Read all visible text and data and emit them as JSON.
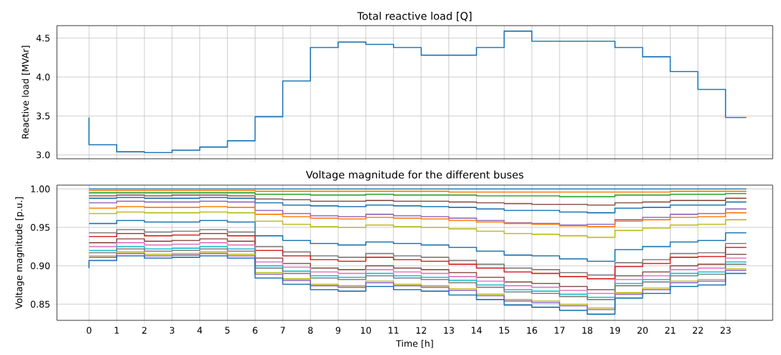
{
  "chart_data": [
    {
      "type": "step",
      "title": "Total reactive load [Q]",
      "ylabel": "Reactive load [MVAr]",
      "x": [
        0,
        1,
        2,
        3,
        4,
        5,
        6,
        7,
        8,
        9,
        10,
        11,
        12,
        13,
        14,
        15,
        16,
        17,
        18,
        19,
        20,
        21,
        22,
        23,
        23.75
      ],
      "values": [
        3.48,
        3.13,
        3.04,
        3.03,
        3.06,
        3.1,
        3.18,
        3.49,
        3.95,
        4.38,
        4.45,
        4.42,
        4.38,
        4.28,
        4.28,
        4.38,
        4.59,
        4.46,
        4.46,
        4.46,
        4.38,
        4.26,
        4.07,
        3.84,
        3.48
      ],
      "color": "#1f77b4",
      "xlim": [
        -1.16,
        24.7
      ],
      "ylim": [
        2.95,
        4.66
      ],
      "xticks": [
        0,
        1,
        2,
        3,
        4,
        5,
        6,
        7,
        8,
        9,
        10,
        11,
        12,
        13,
        14,
        15,
        16,
        17,
        18,
        19,
        20,
        21,
        22,
        23
      ],
      "yticks": [
        {
          "value": 3,
          "label": "3.0"
        },
        3.5,
        {
          "value": 4,
          "label": "4.0"
        },
        4.5
      ],
      "tick_labels": "y",
      "grid": true
    },
    {
      "type": "step",
      "title": "Voltage magnitude for the different buses",
      "xlabel": "Time [h]",
      "ylabel": "Voltage magnitude [p.u.]",
      "x": [
        0,
        1,
        2,
        3,
        4,
        5,
        6,
        7,
        8,
        9,
        10,
        11,
        12,
        13,
        14,
        15,
        16,
        17,
        18,
        19,
        20,
        21,
        22,
        23,
        23.75
      ],
      "series": [
        {
          "color": "#1f77b4",
          "values": [
            1.0,
            1.0,
            1.0,
            1.0,
            1.0,
            1.0,
            1.0,
            1.0,
            1.0,
            1.0,
            1.0,
            1.0,
            1.0,
            1.0,
            1.0,
            1.0,
            1.0,
            1.0,
            1.0,
            1.0,
            1.0,
            1.0,
            1.0,
            1.0,
            1.0
          ]
        },
        {
          "color": "#ff7f0e",
          "values": [
            0.998,
            0.998,
            0.998,
            0.998,
            0.998,
            0.998,
            0.998,
            0.997,
            0.997,
            0.997,
            0.997,
            0.997,
            0.997,
            0.997,
            0.996,
            0.996,
            0.996,
            0.996,
            0.996,
            0.996,
            0.996,
            0.996,
            0.997,
            0.997,
            0.997
          ]
        },
        {
          "color": "#2ca02c",
          "values": [
            0.995,
            0.995,
            0.995,
            0.995,
            0.995,
            0.995,
            0.995,
            0.993,
            0.993,
            0.992,
            0.992,
            0.993,
            0.992,
            0.992,
            0.992,
            0.991,
            0.991,
            0.991,
            0.99,
            0.99,
            0.992,
            0.992,
            0.993,
            0.993,
            0.994
          ]
        },
        {
          "color": "#8c564b",
          "values": [
            0.991,
            0.991,
            0.992,
            0.991,
            0.992,
            0.992,
            0.991,
            0.987,
            0.986,
            0.984,
            0.984,
            0.985,
            0.984,
            0.984,
            0.983,
            0.982,
            0.981,
            0.98,
            0.98,
            0.979,
            0.982,
            0.983,
            0.985,
            0.985,
            0.988
          ]
        },
        {
          "color": "#1f77b4",
          "values": [
            0.988,
            0.988,
            0.989,
            0.988,
            0.988,
            0.989,
            0.988,
            0.982,
            0.979,
            0.978,
            0.977,
            0.979,
            0.978,
            0.977,
            0.976,
            0.974,
            0.972,
            0.972,
            0.97,
            0.969,
            0.975,
            0.976,
            0.979,
            0.979,
            0.983
          ]
        },
        {
          "color": "#9467bd",
          "values": [
            0.982,
            0.982,
            0.984,
            0.983,
            0.983,
            0.984,
            0.983,
            0.972,
            0.968,
            0.965,
            0.964,
            0.967,
            0.965,
            0.964,
            0.962,
            0.959,
            0.956,
            0.955,
            0.953,
            0.954,
            0.96,
            0.963,
            0.967,
            0.968,
            0.974
          ]
        },
        {
          "color": "#ff7f0e",
          "values": [
            0.975,
            0.975,
            0.977,
            0.976,
            0.976,
            0.977,
            0.976,
            0.967,
            0.964,
            0.962,
            0.961,
            0.963,
            0.962,
            0.961,
            0.959,
            0.957,
            0.955,
            0.954,
            0.952,
            0.951,
            0.958,
            0.96,
            0.963,
            0.964,
            0.969
          ]
        },
        {
          "color": "#bcbd22",
          "values": [
            0.968,
            0.968,
            0.97,
            0.969,
            0.969,
            0.97,
            0.969,
            0.958,
            0.954,
            0.951,
            0.95,
            0.953,
            0.951,
            0.95,
            0.948,
            0.945,
            0.942,
            0.941,
            0.939,
            0.937,
            0.946,
            0.949,
            0.953,
            0.954,
            0.96
          ]
        },
        {
          "color": "#1f77b4",
          "values": [
            0.955,
            0.955,
            0.959,
            0.957,
            0.957,
            0.959,
            0.957,
            0.939,
            0.933,
            0.929,
            0.927,
            0.931,
            0.929,
            0.927,
            0.924,
            0.919,
            0.914,
            0.913,
            0.909,
            0.906,
            0.921,
            0.925,
            0.931,
            0.933,
            0.943
          ]
        },
        {
          "color": "#7f7f7f",
          "values": [
            0.943,
            0.943,
            0.947,
            0.944,
            0.945,
            0.947,
            0.944,
            0.925,
            0.918,
            0.913,
            0.911,
            0.916,
            0.913,
            0.911,
            0.907,
            0.902,
            0.897,
            0.895,
            0.891,
            0.888,
            0.904,
            0.908,
            0.916,
            0.917,
            0.929
          ]
        },
        {
          "color": "#d62728",
          "values": [
            0.938,
            0.938,
            0.942,
            0.939,
            0.94,
            0.942,
            0.939,
            0.92,
            0.913,
            0.908,
            0.906,
            0.911,
            0.908,
            0.906,
            0.902,
            0.897,
            0.892,
            0.89,
            0.886,
            0.883,
            0.899,
            0.903,
            0.911,
            0.912,
            0.924
          ]
        },
        {
          "color": "#8c564b",
          "values": [
            0.93,
            0.93,
            0.935,
            0.932,
            0.933,
            0.935,
            0.932,
            0.91,
            0.903,
            0.897,
            0.895,
            0.9,
            0.897,
            0.895,
            0.891,
            0.885,
            0.879,
            0.877,
            0.873,
            0.869,
            0.887,
            0.892,
            0.9,
            0.902,
            0.915
          ]
        },
        {
          "color": "#e377c2",
          "values": [
            0.925,
            0.925,
            0.93,
            0.927,
            0.928,
            0.93,
            0.927,
            0.905,
            0.898,
            0.892,
            0.89,
            0.895,
            0.892,
            0.89,
            0.886,
            0.88,
            0.874,
            0.872,
            0.868,
            0.864,
            0.882,
            0.887,
            0.895,
            0.897,
            0.91
          ]
        },
        {
          "color": "#17becf",
          "values": [
            0.92,
            0.92,
            0.925,
            0.922,
            0.923,
            0.925,
            0.922,
            0.9,
            0.893,
            0.887,
            0.885,
            0.89,
            0.887,
            0.885,
            0.881,
            0.875,
            0.869,
            0.867,
            0.863,
            0.859,
            0.877,
            0.882,
            0.89,
            0.892,
            0.905
          ]
        },
        {
          "color": "#7f7f7f",
          "values": [
            0.917,
            0.917,
            0.922,
            0.919,
            0.92,
            0.922,
            0.919,
            0.897,
            0.89,
            0.884,
            0.882,
            0.887,
            0.884,
            0.882,
            0.878,
            0.872,
            0.866,
            0.864,
            0.86,
            0.856,
            0.874,
            0.879,
            0.887,
            0.889,
            0.902
          ]
        },
        {
          "color": "#bcbd22",
          "values": [
            0.913,
            0.913,
            0.918,
            0.915,
            0.916,
            0.918,
            0.915,
            0.891,
            0.883,
            0.876,
            0.874,
            0.88,
            0.876,
            0.874,
            0.87,
            0.863,
            0.856,
            0.854,
            0.85,
            0.845,
            0.865,
            0.871,
            0.88,
            0.882,
            0.896
          ]
        },
        {
          "color": "#9467bd",
          "values": [
            0.911,
            0.911,
            0.916,
            0.913,
            0.914,
            0.916,
            0.913,
            0.889,
            0.881,
            0.874,
            0.872,
            0.878,
            0.874,
            0.872,
            0.868,
            0.861,
            0.854,
            0.852,
            0.848,
            0.843,
            0.863,
            0.869,
            0.878,
            0.88,
            0.894
          ]
        },
        {
          "color": "#1f77b4",
          "values": [
            0.897,
            0.907,
            0.913,
            0.91,
            0.911,
            0.913,
            0.91,
            0.884,
            0.876,
            0.869,
            0.867,
            0.873,
            0.869,
            0.867,
            0.862,
            0.856,
            0.849,
            0.846,
            0.842,
            0.837,
            0.858,
            0.864,
            0.873,
            0.875,
            0.89
          ]
        }
      ],
      "xlim": [
        -1.16,
        24.7
      ],
      "ylim": [
        0.829,
        1.005
      ],
      "xticks": [
        0,
        1,
        2,
        3,
        4,
        5,
        6,
        7,
        8,
        9,
        10,
        11,
        12,
        13,
        14,
        15,
        16,
        17,
        18,
        19,
        20,
        21,
        22,
        23
      ],
      "yticks": [
        {
          "value": 0.85,
          "label": "0.85"
        },
        {
          "value": 0.9,
          "label": "0.90"
        },
        0.95,
        {
          "value": 1.0,
          "label": "1.00"
        }
      ],
      "grid": true
    }
  ]
}
